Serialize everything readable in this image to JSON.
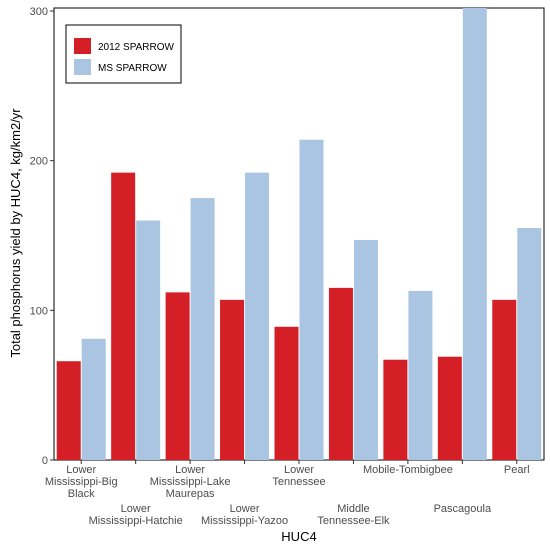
{
  "chart_data": {
    "type": "bar",
    "title": "",
    "xlabel": "HUC4",
    "ylabel": "Total phosphorus yield by HUC4, kg/km2/yr",
    "ylim": [
      0,
      302
    ],
    "yticks": [
      0,
      100,
      200,
      300
    ],
    "grid": false,
    "legend_position": "top-left",
    "categories": [
      [
        "Lower",
        "Mississippi-Big",
        "Black"
      ],
      [
        "Lower",
        "Mississippi-Hatchie"
      ],
      [
        "Lower",
        "Mississippi-Lake",
        "Maurepas"
      ],
      [
        "Lower",
        "Mississippi-Yazoo"
      ],
      [
        "Lower",
        "Tennessee"
      ],
      [
        "Middle",
        "Tennessee-Elk"
      ],
      [
        "Mobile-Tombigbee"
      ],
      [
        "Pascagoula"
      ],
      [
        "Pearl"
      ]
    ],
    "series": [
      {
        "name": "2012 SPARROW",
        "color": "#d41f26",
        "values": [
          66,
          192,
          112,
          107,
          89,
          115,
          67,
          69,
          107
        ]
      },
      {
        "name": "MS SPARROW",
        "color": "#a9c5e1",
        "values": [
          81,
          160,
          175,
          192,
          214,
          147,
          113,
          305,
          155
        ]
      }
    ]
  }
}
